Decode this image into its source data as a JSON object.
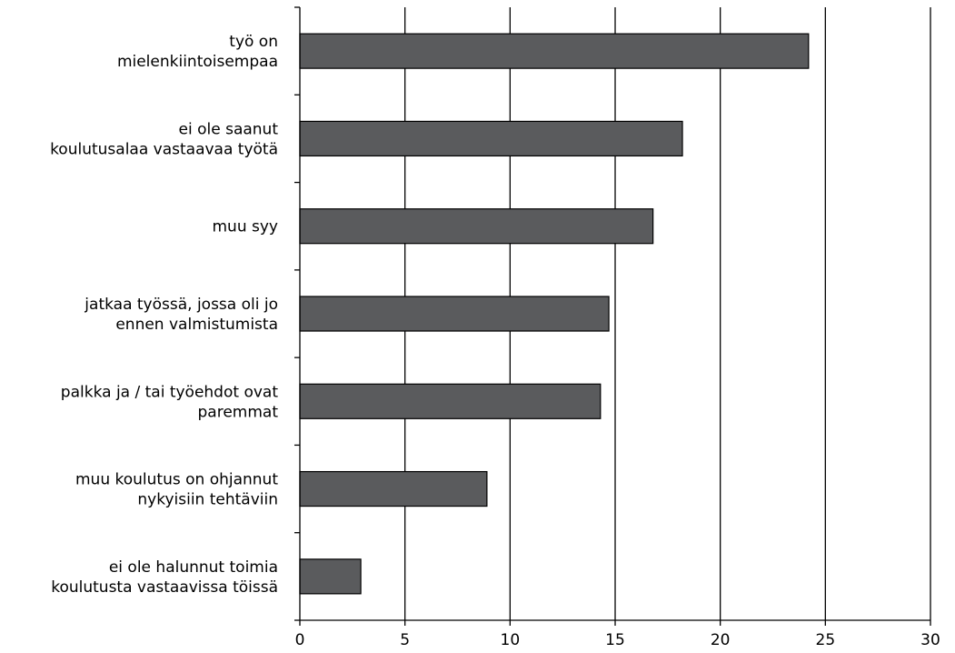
{
  "chart_data": {
    "type": "bar",
    "orientation": "horizontal",
    "categories": [
      [
        "työ on",
        "mielenkiintoisempaa"
      ],
      [
        "ei ole saanut",
        "koulutusalaa vastaavaa työtä"
      ],
      [
        "muu syy"
      ],
      [
        "jatkaa työssä, jossa oli jo",
        "ennen valmistumista"
      ],
      [
        "palkka ja / tai työehdot ovat",
        "paremmat"
      ],
      [
        "muu koulutus on ohjannut",
        "nykyisiin tehtäviin"
      ],
      [
        "ei ole halunnut toimia",
        "koulutusta vastaavissa töissä"
      ]
    ],
    "values": [
      24.2,
      18.2,
      16.8,
      14.7,
      14.3,
      8.9,
      2.9
    ],
    "xlim": [
      0,
      30
    ],
    "xticks": [
      0,
      5,
      10,
      15,
      20,
      25,
      30
    ],
    "title": "",
    "xlabel": "",
    "ylabel": "",
    "grid": "vertical",
    "legend": "none",
    "colors": {
      "bar_fill": "#5a5b5d",
      "bar_stroke": "#000000",
      "grid": "#000000"
    }
  }
}
